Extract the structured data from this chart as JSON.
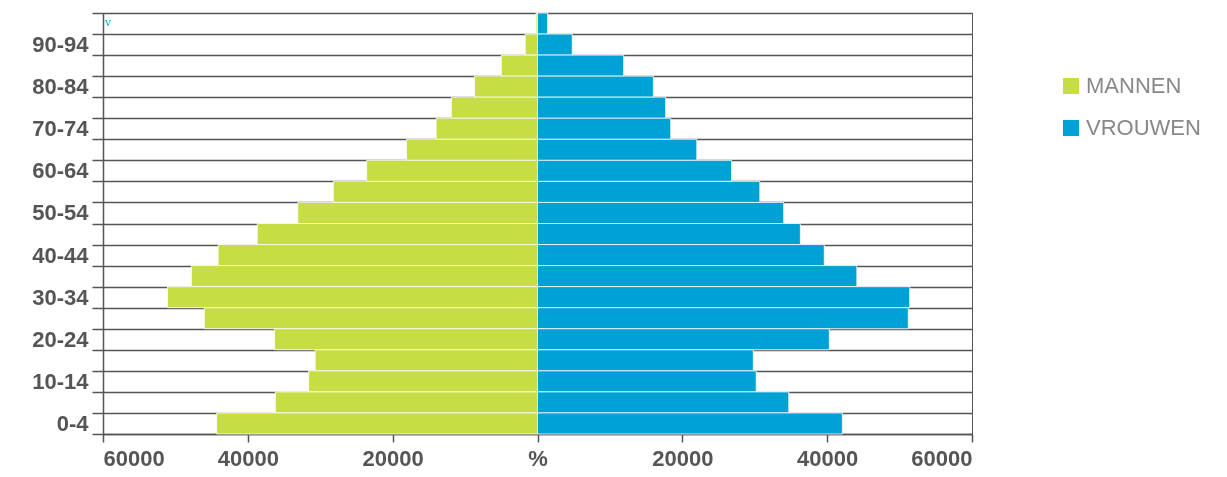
{
  "chart_data": {
    "type": "bar",
    "orientation": "horizontal",
    "categories": [
      null,
      "90-94",
      null,
      "80-84",
      null,
      "70-74",
      null,
      "60-64",
      null,
      "50-54",
      null,
      "40-44",
      null,
      "30-34",
      null,
      "20-24",
      null,
      "10-14",
      null,
      "0-4"
    ],
    "series": [
      {
        "name": "MANNEN",
        "color": "#c8dc44",
        "values": [
          -200,
          -1700,
          -5000,
          -8700,
          -11900,
          -14000,
          -18100,
          -23600,
          -28200,
          -33100,
          -38700,
          -44100,
          -47800,
          -51100,
          -46000,
          -36300,
          -30700,
          -31600,
          -36200,
          -44300
        ]
      },
      {
        "name": "VROUWEN",
        "color": "#00a1d5",
        "values": [
          1400,
          4800,
          11900,
          16000,
          17700,
          18400,
          22000,
          26800,
          30700,
          34000,
          36300,
          39600,
          44100,
          51400,
          51200,
          40300,
          29800,
          30200,
          34700,
          42100
        ]
      }
    ],
    "xlim": [
      -60000,
      60000
    ],
    "xticks": [
      {
        "value": -60000,
        "label": "60000"
      },
      {
        "value": -40000,
        "label": "40000"
      },
      {
        "value": -20000,
        "label": "20000"
      },
      {
        "value": 0,
        "label": "%"
      },
      20000,
      40000,
      60000
    ],
    "stacked": true,
    "grid": "y",
    "legend": "right",
    "annotations": [
      "v"
    ]
  }
}
